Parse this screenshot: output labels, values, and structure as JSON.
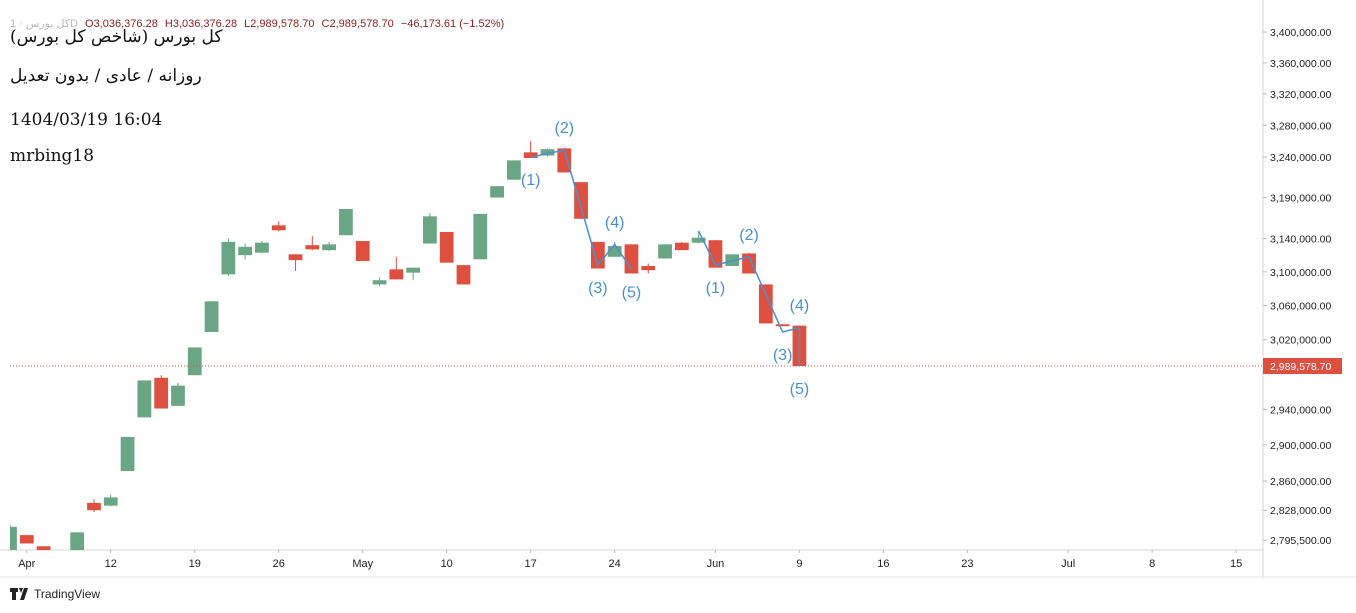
{
  "chart_data": {
    "type": "candlestick",
    "header": {
      "symbol": "کل بورس · 1D",
      "ohlc": [
        "O3,036,376.28",
        "H3,036,376.28",
        "L2,989,578.70",
        "C2,989,578.70",
        "−46,173.61 (−1.52%)"
      ]
    },
    "title": "کل بورس (شاخص کل بورس)",
    "subtitle": "روزانه / عادی / بدون تعدیل",
    "timestamp": "1404/03/19 16:04",
    "author": "mrbing18",
    "footer": "TradingView",
    "up_color": "#6aa584",
    "down_color": "#dd5040",
    "wave_color": "#4a8fd0",
    "log_scale": true,
    "x": [
      0,
      1,
      2,
      4,
      5,
      6,
      7,
      8,
      9,
      10,
      11,
      12,
      13,
      14,
      15,
      16,
      17,
      18,
      19,
      20,
      21,
      22,
      23,
      24,
      25,
      26,
      27,
      28,
      29,
      30,
      31,
      32,
      33,
      34,
      35,
      36,
      37,
      38,
      39,
      40,
      41,
      42,
      43,
      44,
      45,
      46,
      47
    ],
    "open": [
      2782000,
      2801000,
      2789000,
      2780000,
      2836000,
      2833000,
      2871000,
      2931000,
      2976000,
      2944000,
      2979000,
      3029000,
      3097000,
      3120000,
      3123000,
      3156000,
      3121000,
      3132000,
      3126000,
      3144000,
      3137000,
      3085000,
      3103000,
      3099000,
      3134000,
      3148000,
      3108000,
      3115000,
      3190000,
      3212000,
      3246000,
      3242000,
      3251000,
      3209000,
      3136000,
      3118000,
      3133000,
      3107000,
      3116000,
      3135000,
      3135000,
      3138000,
      3107000,
      3122000,
      3085000,
      3038000,
      3036376.28
    ],
    "high": [
      2812000,
      2801000,
      2789000,
      2804000,
      2840000,
      2845000,
      2909000,
      2973000,
      2979000,
      2970000,
      3011000,
      3065000,
      3140000,
      3134000,
      3137000,
      3161000,
      3121000,
      3143000,
      3136000,
      3176000,
      3137000,
      3093000,
      3118000,
      3105000,
      3171000,
      3148000,
      3108000,
      3170000,
      3204000,
      3236000,
      3260000,
      3251000,
      3252000,
      3209000,
      3136000,
      3136000,
      3133000,
      3110000,
      3133000,
      3136000,
      3149000,
      3138000,
      3121000,
      3123000,
      3085000,
      3038000,
      3036376.28
    ],
    "low": [
      2782000,
      2792000,
      2780000,
      2780000,
      2826000,
      2832000,
      2871000,
      2931000,
      2941000,
      2944000,
      2979000,
      3029000,
      3095000,
      3115000,
      3122000,
      3149000,
      3101000,
      3126000,
      3125000,
      3144000,
      3113000,
      3083000,
      3091000,
      3090000,
      3134000,
      3111000,
      3085000,
      3115000,
      3190000,
      3212000,
      3239000,
      3241000,
      3221000,
      3164000,
      3104000,
      3118000,
      3098000,
      3098000,
      3116000,
      3126000,
      3134000,
      3105000,
      3107000,
      3098000,
      3039000,
      3035752.31,
      2989578.7
    ],
    "close": [
      2810000,
      2792000,
      2780000,
      2804000,
      2828000,
      2842000,
      2909000,
      2973000,
      2941000,
      2967000,
      3011000,
      3065000,
      3136000,
      3130000,
      3135000,
      3150000,
      3114000,
      3127000,
      3133000,
      3176000,
      3113000,
      3090000,
      3091000,
      3105000,
      3167000,
      3111000,
      3085000,
      3170000,
      3204000,
      3236000,
      3239000,
      3250000,
      3221000,
      3164000,
      3104000,
      3131000,
      3098000,
      3102000,
      3133000,
      3126000,
      3141000,
      3105000,
      3121000,
      3098000,
      3039000,
      3035752.31,
      2989578.7
    ],
    "last_price": {
      "value": 2989578.7,
      "label": "2,989,578.70"
    },
    "waves": [
      {
        "x": [
          31,
          33,
          35,
          36,
          37
        ],
        "y": [
          3240000,
          3249000,
          3108000,
          3133000,
          3103000
        ],
        "labels": [
          "(1)",
          "(2)",
          "(3)",
          "(4)",
          "(5)"
        ]
      },
      {
        "x": [
          41,
          42,
          44,
          46,
          47,
          47
        ],
        "y": [
          3149000,
          3108000,
          3118000,
          3029000,
          3034000,
          2989578.7
        ],
        "labels": [
          null,
          "(1)",
          "(2)",
          "(3)",
          "(4)",
          "(5)"
        ]
      }
    ],
    "xlim": [
      0,
      74.6
    ],
    "xticks": [
      {
        "value": 1,
        "label": "Apr"
      },
      {
        "value": 6,
        "label": "12"
      },
      {
        "value": 11,
        "label": "19"
      },
      {
        "value": 16,
        "label": "26"
      },
      {
        "value": 21,
        "label": "May"
      },
      {
        "value": 26,
        "label": "10"
      },
      {
        "value": 31,
        "label": "17"
      },
      {
        "value": 36,
        "label": "24"
      },
      {
        "value": 42,
        "label": "Jun"
      },
      {
        "value": 47,
        "label": "9"
      },
      {
        "value": 52,
        "label": "16"
      },
      {
        "value": 57,
        "label": "23"
      },
      {
        "value": 63,
        "label": "Jul"
      },
      {
        "value": 68,
        "label": "8"
      },
      {
        "value": 73,
        "label": "15"
      }
    ],
    "ylim": [
      2785000,
      3429000
    ],
    "yticks": [
      {
        "value": 3400000,
        "label": "3,400,000.00"
      },
      {
        "value": 3360000,
        "label": "3,360,000.00"
      },
      {
        "value": 3320000,
        "label": "3,320,000.00"
      },
      {
        "value": 3280000,
        "label": "3,280,000.00"
      },
      {
        "value": 3240000,
        "label": "3,240,000.00"
      },
      {
        "value": 3190000,
        "label": "3,190,000.00"
      },
      {
        "value": 3140000,
        "label": "3,140,000.00"
      },
      {
        "value": 3100000,
        "label": "3,100,000.00"
      },
      {
        "value": 3060000,
        "label": "3,060,000.00"
      },
      {
        "value": 3020000,
        "label": "3,020,000.00"
      },
      {
        "value": 2940000,
        "label": "2,940,000.00"
      },
      {
        "value": 2900000,
        "label": "2,900,000.00"
      },
      {
        "value": 2860000,
        "label": "2,860,000.00"
      },
      {
        "value": 2828000,
        "label": "2,828,000.00"
      },
      {
        "value": 2795500,
        "label": "2,795,500.00"
      }
    ]
  }
}
